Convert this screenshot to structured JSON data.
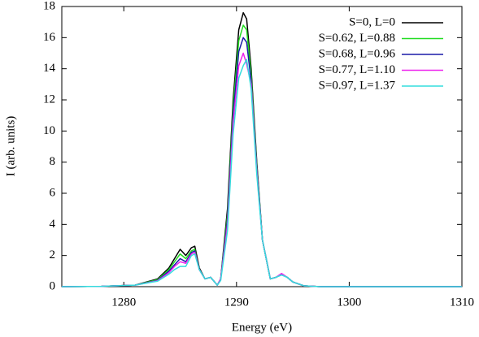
{
  "chart_data": {
    "type": "line",
    "x_label": "Energy (eV)",
    "y_label": "I (arb. units)",
    "x": [
      1274.5,
      1278,
      1281,
      1283,
      1284,
      1284.5,
      1285,
      1285.5,
      1286,
      1286.3,
      1286.7,
      1287.2,
      1287.7,
      1288.3,
      1288.6,
      1289.2,
      1289.7,
      1290.2,
      1290.6,
      1290.9,
      1291.3,
      1291.8,
      1292.3,
      1293,
      1293.5,
      1294,
      1294.5,
      1295,
      1296,
      1297.5,
      1300,
      1310
    ],
    "series": [
      {
        "name": "S=0, L=0",
        "color": "#000000",
        "values": [
          0,
          0.02,
          0.1,
          0.5,
          1.2,
          1.8,
          2.4,
          2.0,
          2.5,
          2.6,
          1.2,
          0.5,
          0.6,
          0.1,
          0.5,
          5,
          12,
          16.5,
          17.6,
          17.2,
          14,
          8,
          3,
          0.5,
          0.6,
          0.8,
          0.6,
          0.3,
          0.05,
          0,
          0,
          0
        ]
      },
      {
        "name": "S=0.62, L=0.88",
        "color": "#22dd22",
        "values": [
          0,
          0.02,
          0.1,
          0.45,
          1.1,
          1.6,
          2.1,
          1.8,
          2.3,
          2.4,
          1.1,
          0.5,
          0.6,
          0.1,
          0.5,
          4.6,
          11.5,
          15.8,
          16.8,
          16.5,
          13.6,
          7.8,
          3,
          0.5,
          0.6,
          0.8,
          0.6,
          0.3,
          0.05,
          0,
          0,
          0
        ]
      },
      {
        "name": "S=0.68, L=0.96",
        "color": "#1a1aa8",
        "values": [
          0,
          0.02,
          0.1,
          0.4,
          1.0,
          1.4,
          1.8,
          1.6,
          2.2,
          2.3,
          1.1,
          0.5,
          0.6,
          0.1,
          0.5,
          4.3,
          11,
          15.1,
          16.0,
          15.7,
          13.2,
          7.6,
          3,
          0.5,
          0.6,
          0.8,
          0.6,
          0.3,
          0.05,
          0,
          0,
          0
        ]
      },
      {
        "name": "S=0.77, L=1.10",
        "color": "#ee22ee",
        "values": [
          0,
          0.02,
          0.1,
          0.38,
          0.9,
          1.3,
          1.6,
          1.5,
          2.1,
          2.2,
          1.1,
          0.5,
          0.6,
          0.1,
          0.5,
          4.0,
          10.5,
          14.2,
          15.0,
          14.3,
          13.0,
          7.4,
          3,
          0.5,
          0.6,
          0.85,
          0.6,
          0.3,
          0.05,
          0,
          0,
          0
        ]
      },
      {
        "name": "S=0.97, L=1.37",
        "color": "#33dddd",
        "values": [
          0,
          0.02,
          0.1,
          0.35,
          0.8,
          1.1,
          1.3,
          1.3,
          2.0,
          2.1,
          1.1,
          0.5,
          0.6,
          0.1,
          0.4,
          3.6,
          9.8,
          13.4,
          14.2,
          14.6,
          12.7,
          7.2,
          3,
          0.5,
          0.6,
          0.75,
          0.6,
          0.3,
          0.05,
          0,
          0,
          0
        ]
      }
    ],
    "xlim": [
      1274.5,
      1310
    ],
    "xticks": [
      1280,
      1290,
      1300,
      1310
    ],
    "ylim": [
      0,
      18
    ],
    "yticks": [
      0,
      2,
      4,
      6,
      8,
      10,
      12,
      14,
      16,
      18
    ],
    "legend": "top-right"
  }
}
